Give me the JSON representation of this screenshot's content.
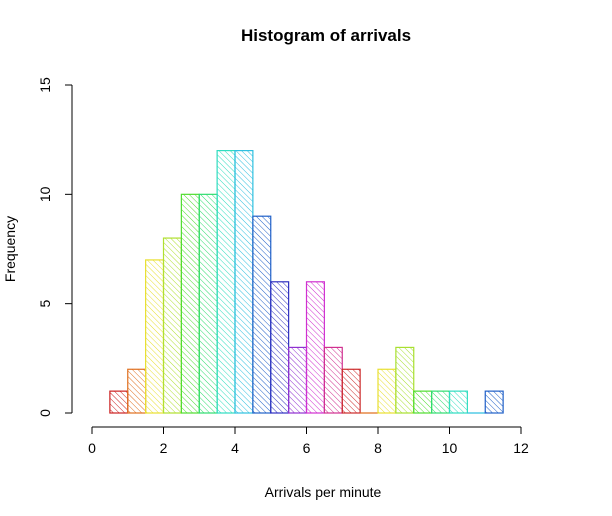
{
  "chart_data": {
    "type": "bar",
    "title": "Histogram of arrivals",
    "xlabel": "Arrivals per minute",
    "ylabel": "Frequency",
    "xlim": [
      0,
      12
    ],
    "ylim": [
      0,
      15
    ],
    "x_ticks": [
      "0",
      "2",
      "4",
      "6",
      "8",
      "10",
      "12"
    ],
    "y_ticks": [
      "0",
      "5",
      "10",
      "15"
    ],
    "bin_width": 0.5,
    "bins": [
      {
        "start": 0.5,
        "end": 1.0,
        "count": 1,
        "color": "#cc2222"
      },
      {
        "start": 1.0,
        "end": 1.5,
        "count": 2,
        "color": "#e07020"
      },
      {
        "start": 1.5,
        "end": 2.0,
        "count": 7,
        "color": "#e8e030"
      },
      {
        "start": 2.0,
        "end": 2.5,
        "count": 8,
        "color": "#b0e030"
      },
      {
        "start": 2.5,
        "end": 3.0,
        "count": 10,
        "color": "#50dd30"
      },
      {
        "start": 3.0,
        "end": 3.5,
        "count": 10,
        "color": "#30dd70"
      },
      {
        "start": 3.5,
        "end": 4.0,
        "count": 12,
        "color": "#30ddc0"
      },
      {
        "start": 4.0,
        "end": 4.5,
        "count": 12,
        "color": "#30c0e0"
      },
      {
        "start": 4.5,
        "end": 5.0,
        "count": 9,
        "color": "#2060c8"
      },
      {
        "start": 5.0,
        "end": 5.5,
        "count": 6,
        "color": "#3030c0"
      },
      {
        "start": 5.5,
        "end": 6.0,
        "count": 3,
        "color": "#9030d0"
      },
      {
        "start": 6.0,
        "end": 6.5,
        "count": 6,
        "color": "#d030d0"
      },
      {
        "start": 6.5,
        "end": 7.0,
        "count": 3,
        "color": "#d03090"
      },
      {
        "start": 7.0,
        "end": 7.5,
        "count": 2,
        "color": "#cc2a2a"
      },
      {
        "start": 7.5,
        "end": 8.0,
        "count": 0,
        "color": "#e07020"
      },
      {
        "start": 8.0,
        "end": 8.5,
        "count": 2,
        "color": "#e8e030"
      },
      {
        "start": 8.5,
        "end": 9.0,
        "count": 3,
        "color": "#a8e030"
      },
      {
        "start": 9.0,
        "end": 9.5,
        "count": 1,
        "color": "#50dd30"
      },
      {
        "start": 9.5,
        "end": 10.0,
        "count": 1,
        "color": "#30dd70"
      },
      {
        "start": 10.0,
        "end": 10.5,
        "count": 1,
        "color": "#30ddc0"
      },
      {
        "start": 10.5,
        "end": 11.0,
        "count": 0,
        "color": "#30c0e0"
      },
      {
        "start": 11.0,
        "end": 11.5,
        "count": 1,
        "color": "#2060c8"
      }
    ],
    "fill": "diagonal hatching",
    "grid": false
  }
}
